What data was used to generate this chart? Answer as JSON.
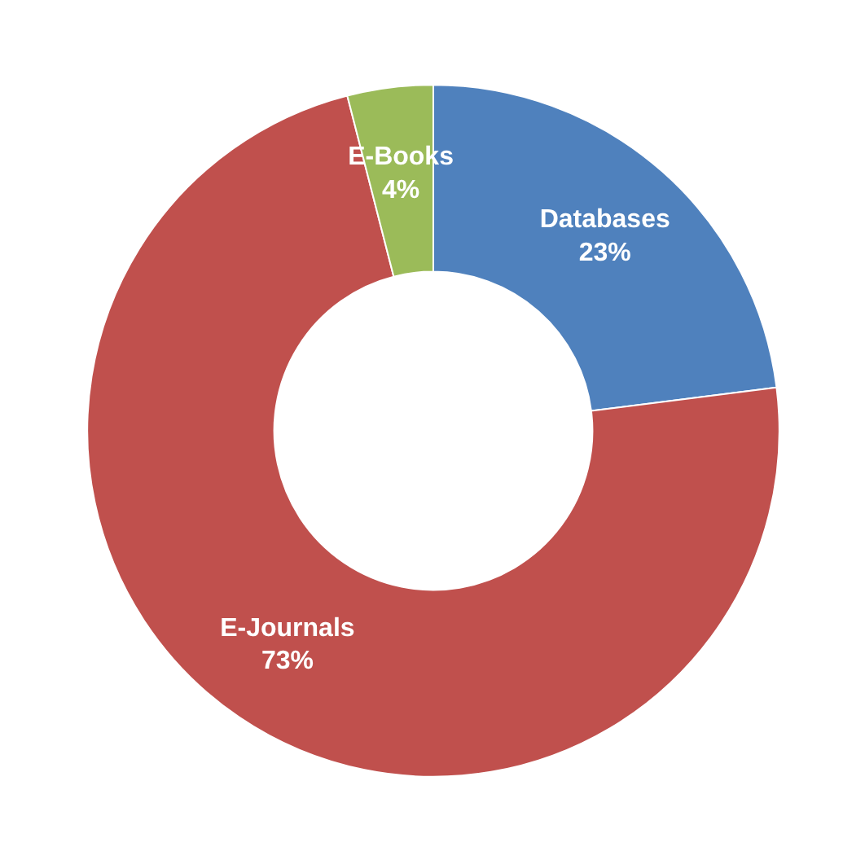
{
  "chart_data": {
    "type": "donut",
    "categories": [
      "Databases",
      "E-Journals",
      "E-Books"
    ],
    "values": [
      23,
      73,
      4
    ],
    "colors": [
      "#4f81bd",
      "#c0504d",
      "#9bbb59"
    ],
    "value_labels": [
      "23%",
      "73%",
      "4%"
    ]
  }
}
